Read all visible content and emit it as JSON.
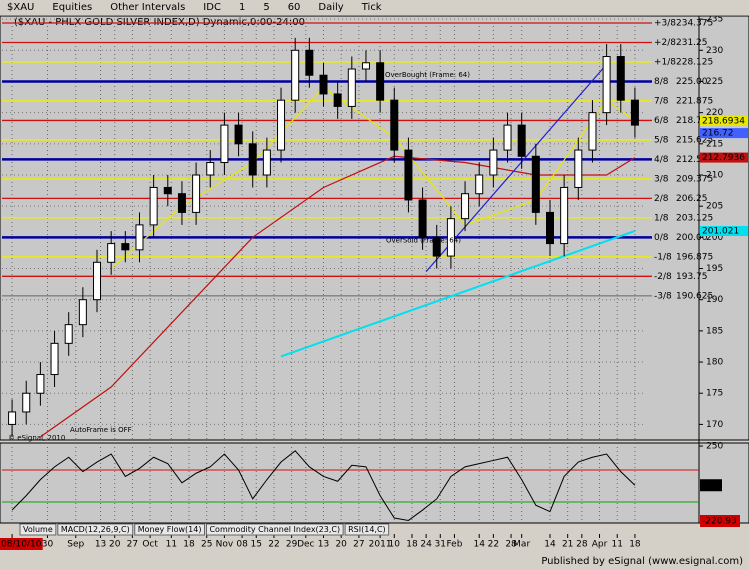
{
  "toolbar": [
    "$XAU",
    "Equities",
    "Other Intervals",
    "IDC",
    "1",
    "5",
    "60",
    "Daily",
    "Tick"
  ],
  "footer": "Published by eSignal (www.esignal.com)",
  "tabs": [
    "Volume",
    "MACD(12,26,9,C)",
    "Money Flow(14)",
    "Commodity Channel Index(23,C)",
    "RSI(14,C)"
  ],
  "chart_data": [
    {
      "type": "candlestick",
      "title": "($XAU - PHLX GOLD SILVER INDEX,D) Dynamic,0:00-24:00",
      "x": [
        2,
        6,
        10,
        14,
        18,
        22,
        26,
        30,
        34,
        38,
        42,
        46,
        50,
        54,
        58,
        62,
        66,
        70,
        74,
        78,
        82,
        86,
        90,
        94,
        98,
        102,
        106,
        110,
        114,
        118,
        122,
        126,
        130,
        134,
        138,
        142,
        146,
        150,
        154,
        158,
        162,
        166,
        170,
        174,
        178
      ],
      "open": [
        170,
        172,
        175,
        178,
        183,
        186,
        190,
        196,
        199,
        198,
        202,
        208,
        207,
        204,
        210,
        212,
        218,
        215,
        210,
        214,
        222,
        230,
        226,
        223,
        221,
        227,
        228,
        222,
        214,
        206,
        200,
        197,
        203,
        207,
        210,
        214,
        218,
        213,
        204,
        199,
        208,
        214,
        220,
        229,
        222
      ],
      "high": [
        174,
        177,
        180,
        185,
        188,
        192,
        198,
        201,
        201,
        204,
        210,
        210,
        209,
        212,
        214,
        220,
        220,
        217,
        216,
        224,
        232,
        232,
        228,
        225,
        229,
        230,
        230,
        224,
        216,
        208,
        202,
        205,
        209,
        212,
        216,
        220,
        220,
        215,
        206,
        210,
        216,
        222,
        231,
        231,
        224
      ],
      "low": [
        168,
        170,
        173,
        176,
        181,
        184,
        188,
        194,
        196,
        196,
        200,
        205,
        202,
        202,
        208,
        210,
        213,
        208,
        208,
        212,
        220,
        224,
        221,
        219,
        219,
        225,
        220,
        212,
        204,
        198,
        195,
        195,
        201,
        205,
        208,
        212,
        211,
        202,
        197,
        197,
        206,
        212,
        218,
        220,
        216
      ],
      "close": [
        172,
        175,
        178,
        183,
        186,
        190,
        196,
        199,
        198,
        202,
        208,
        207,
        204,
        210,
        212,
        218,
        215,
        210,
        214,
        222,
        230,
        226,
        223,
        221,
        227,
        228,
        222,
        214,
        206,
        200,
        197,
        203,
        207,
        210,
        214,
        218,
        213,
        204,
        199,
        208,
        214,
        220,
        229,
        222,
        218
      ],
      "xlim": [
        0,
        180
      ],
      "xticks": [
        {
          "value": 2,
          "label": "08/10/10"
        },
        {
          "value": 12,
          "label": "30"
        },
        {
          "value": 20,
          "label": "Sep"
        },
        {
          "value": 27,
          "label": "13"
        },
        {
          "value": 31,
          "label": "20"
        },
        {
          "value": 36,
          "label": "27"
        },
        {
          "value": 41,
          "label": "Oct"
        },
        {
          "value": 47,
          "label": "11"
        },
        {
          "value": 52,
          "label": "18"
        },
        {
          "value": 57,
          "label": "25"
        },
        {
          "value": 62,
          "label": "Nov"
        },
        {
          "value": 67,
          "label": "08"
        },
        {
          "value": 71,
          "label": "15"
        },
        {
          "value": 76,
          "label": "22"
        },
        {
          "value": 81,
          "label": "29"
        },
        {
          "value": 85,
          "label": "Dec"
        },
        {
          "value": 90,
          "label": "13"
        },
        {
          "value": 95,
          "label": "20"
        },
        {
          "value": 100,
          "label": "27"
        },
        {
          "value": 106,
          "label": "2011"
        },
        {
          "value": 110,
          "label": "10"
        },
        {
          "value": 115,
          "label": "18"
        },
        {
          "value": 119,
          "label": "24"
        },
        {
          "value": 123,
          "label": "31"
        },
        {
          "value": 127,
          "label": "Feb"
        },
        {
          "value": 134,
          "label": "14"
        },
        {
          "value": 138,
          "label": "22"
        },
        {
          "value": 143,
          "label": "28"
        },
        {
          "value": 146,
          "label": "Mar"
        },
        {
          "value": 154,
          "label": "14"
        },
        {
          "value": 159,
          "label": "21"
        },
        {
          "value": 163,
          "label": "28"
        },
        {
          "value": 168,
          "label": "Apr"
        },
        {
          "value": 173,
          "label": "11"
        },
        {
          "value": 178,
          "label": "18"
        }
      ],
      "ylim": [
        167.5,
        235.5
      ],
      "yticks": [
        170,
        175,
        180,
        185,
        190,
        195,
        200,
        205,
        210,
        215,
        220,
        225,
        230,
        235
      ],
      "grid": true,
      "levels": [
        {
          "name": "+3/8",
          "value": 234.375,
          "color": "#d01010"
        },
        {
          "name": "+2/8",
          "value": 231.25,
          "color": "#d01010"
        },
        {
          "name": "+1/8",
          "value": 228.125,
          "color": "#f0f000"
        },
        {
          "name": "8/8",
          "value": {
            "value": 225,
            "label": "225.00"
          },
          "color": "#0000a0"
        },
        {
          "name": "7/8",
          "value": 221.875,
          "color": "#f0f000"
        },
        {
          "name": "6/8",
          "value": 218.75,
          "color": "#d01010"
        },
        {
          "name": "5/8",
          "value": 215.625,
          "color": "#f0f000"
        },
        {
          "name": "4/8",
          "value": {
            "value": 212.5,
            "label": "212.50"
          },
          "color": "#0000a0"
        },
        {
          "name": "3/8",
          "value": 209.375,
          "color": "#f0f000"
        },
        {
          "name": "2/8",
          "value": 206.25,
          "color": "#d01010"
        },
        {
          "name": "1/8",
          "value": 203.125,
          "color": "#f0f000"
        },
        {
          "name": "0/8",
          "value": {
            "value": 200,
            "label": "200.00"
          },
          "color": "#0000a0"
        },
        {
          "name": "-1/8",
          "value": 196.875,
          "color": "#f0f000"
        },
        {
          "name": "-2/8",
          "value": 193.75,
          "color": "#d01010"
        },
        {
          "name": "-3/8",
          "value": 190.625,
          "color": "#808080"
        }
      ],
      "series": [
        {
          "color": "#c01010",
          "x": [
            10,
            30,
            50,
            70,
            90,
            110,
            130,
            150,
            170,
            178
          ],
          "values": [
            168,
            176,
            188,
            200,
            208,
            213,
            212,
            210,
            210,
            212.7936
          ]
        },
        {
          "color": "#e8e800",
          "x": [
            30,
            50,
            70,
            90,
            110,
            130,
            150,
            170,
            178
          ],
          "values": [
            195,
            205,
            212,
            224,
            216,
            202,
            206,
            222,
            218.6934
          ]
        },
        {
          "color": "#00e0f0",
          "x": [
            78,
            178
          ],
          "values": [
            180.9,
            201.021
          ]
        },
        {
          "color": "#2020d0",
          "x": [
            119,
            171
          ],
          "values": [
            194.5,
            228.4
          ]
        },
        {
          "color": "#4060ff",
          "x": [
            178
          ],
          "values": [
            216.72
          ]
        }
      ],
      "annotations": [
        "OverBought (Frame: 64)",
        "OverSold (Frame: 64)",
        "AutoFrame is OFF",
        "© eSignal, 2010"
      ]
    },
    {
      "type": "line",
      "x": [
        2,
        6,
        10,
        14,
        18,
        22,
        26,
        30,
        34,
        38,
        42,
        46,
        50,
        54,
        58,
        62,
        66,
        70,
        74,
        78,
        82,
        86,
        90,
        94,
        98,
        102,
        106,
        110,
        114,
        118,
        122,
        126,
        130,
        134,
        138,
        142,
        146,
        150,
        154,
        158,
        162,
        166,
        170,
        174,
        178
      ],
      "values": [
        -150,
        -60,
        40,
        120,
        180,
        90,
        150,
        200,
        60,
        110,
        180,
        140,
        20,
        80,
        120,
        200,
        100,
        -80,
        40,
        150,
        220,
        120,
        60,
        30,
        130,
        120,
        -60,
        -200,
        -215,
        -150,
        -80,
        60,
        120,
        140,
        160,
        180,
        40,
        -120,
        -160,
        60,
        150,
        180,
        200,
        90,
        4.96
      ],
      "color": "#000000",
      "xlim": [
        0,
        180
      ],
      "ylim": [
        -231,
        269
      ],
      "yticks": [
        250
      ],
      "bands": [
        {
          "value": 100,
          "color": "#d01010"
        },
        {
          "value": -100,
          "color": "#10a010"
        }
      ],
      "last_value": 4.96,
      "low_value": -220.93
    }
  ]
}
